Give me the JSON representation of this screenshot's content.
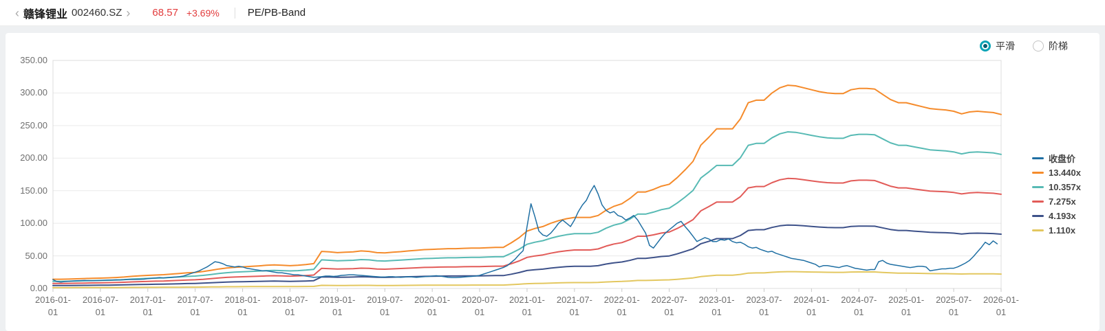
{
  "header": {
    "back_icon": "‹",
    "forward_icon": "›",
    "stock_name": "赣锋锂业",
    "stock_code": "002460.SZ",
    "price": "68.57",
    "change_pct": "+3.69%",
    "view_title": "PE/PB-Band"
  },
  "controls": {
    "options": [
      {
        "label": "平滑",
        "selected": true
      },
      {
        "label": "阶梯",
        "selected": false
      }
    ],
    "accent_color": "#0aa4b6"
  },
  "legend": {
    "items": [
      {
        "label": "收盘价",
        "color": "#1f6fa3"
      },
      {
        "label": "13.440x",
        "color": "#f58b2b"
      },
      {
        "label": "10.357x",
        "color": "#57bab4"
      },
      {
        "label": "7.275x",
        "color": "#e25b58"
      },
      {
        "label": "4.193x",
        "color": "#3d5189"
      },
      {
        "label": "1.110x",
        "color": "#e3c75f"
      }
    ]
  },
  "chart_data": {
    "type": "line",
    "title": "PE/PB-Band",
    "xlabel": "",
    "ylabel": "",
    "grid": true,
    "legend_position": "right",
    "ylim": [
      0,
      350
    ],
    "y_ticks": [
      "350.00",
      "300.00",
      "250.00",
      "200.00",
      "150.00",
      "100.00",
      "50.00",
      "0.00"
    ],
    "x_range_years": [
      2016,
      2026
    ],
    "x_ticks": [
      "2016-01-01",
      "2016-07-01",
      "2017-01-01",
      "2017-07-01",
      "2018-01-01",
      "2018-07-01",
      "2019-01-01",
      "2019-07-01",
      "2020-01-01",
      "2020-07-01",
      "2021-01-01",
      "2021-07-01",
      "2022-01-01",
      "2022-07-01",
      "2023-01-01",
      "2023-07-01",
      "2024-01-01",
      "2024-07-01",
      "2025-01-01",
      "2025-07-01",
      "2026-01-01"
    ],
    "close": {
      "name": "收盘价",
      "color": "#1f6fa3",
      "start_year": 2016,
      "points_per_year": 24,
      "values": [
        13.5,
        10.5,
        9.8,
        10.5,
        11,
        11.5,
        11.8,
        12,
        12.2,
        12,
        11.8,
        12,
        12.2,
        12.5,
        12.8,
        13,
        13.2,
        13,
        13.5,
        13.8,
        14,
        13.8,
        14,
        14.2,
        15,
        15.5,
        16,
        16.5,
        16,
        16.5,
        17,
        17.5,
        18,
        19,
        21,
        23,
        25,
        27,
        30,
        33,
        37,
        41,
        40,
        38,
        35,
        34,
        33,
        34,
        33,
        31,
        30,
        29,
        28,
        27,
        27,
        26,
        25,
        24,
        24,
        23,
        22,
        21,
        21,
        20,
        19,
        18,
        17,
        17.5,
        18,
        19,
        19,
        18.5,
        19,
        20,
        20.5,
        21,
        21,
        20.5,
        20,
        19.5,
        19,
        18.5,
        18,
        17.5,
        17.5,
        18,
        18,
        17.5,
        17,
        17.5,
        18,
        17.5,
        17,
        17.5,
        18,
        18.5,
        19,
        19.5,
        19,
        18,
        17,
        16.5,
        16.5,
        17,
        17.5,
        18,
        18.5,
        19,
        20,
        22,
        24,
        26,
        28,
        30,
        32,
        35,
        40,
        45,
        52,
        58,
        95,
        130,
        110,
        88,
        82,
        80,
        85,
        92,
        100,
        105,
        100,
        95,
        105,
        118,
        128,
        135,
        148,
        158,
        145,
        128,
        120,
        116,
        118,
        112,
        110,
        105,
        108,
        112,
        105,
        95,
        85,
        66,
        62,
        70,
        78,
        85,
        90,
        95,
        100,
        103,
        95,
        88,
        80,
        72,
        75,
        78,
        76,
        72,
        72,
        75,
        74,
        76,
        72,
        70,
        71,
        68,
        64,
        62,
        63,
        60,
        58,
        56,
        57,
        54,
        52,
        50,
        48,
        46,
        45,
        44,
        43,
        41,
        39,
        37,
        33,
        35,
        35,
        34,
        33,
        32,
        34,
        35,
        33,
        31,
        30,
        29,
        28,
        29,
        29,
        41,
        43,
        39,
        37,
        36,
        35,
        34,
        33,
        32,
        33,
        34,
        34,
        33,
        27,
        28,
        29,
        30,
        30,
        31,
        31,
        33,
        36,
        39,
        43,
        49,
        56,
        63,
        71,
        67,
        73,
        68.57
      ]
    },
    "bands": {
      "description": "PB band lines; each series value = base_value * multiple",
      "start_year": 2016,
      "points_per_year": 12,
      "base_values": [
        1.05,
        1.05,
        1.07,
        1.1,
        1.13,
        1.16,
        1.18,
        1.21,
        1.25,
        1.3,
        1.38,
        1.44,
        1.49,
        1.53,
        1.57,
        1.64,
        1.71,
        1.78,
        1.83,
        1.93,
        2.07,
        2.22,
        2.33,
        2.41,
        2.46,
        2.52,
        2.57,
        2.64,
        2.68,
        2.64,
        2.6,
        2.64,
        2.72,
        2.83,
        4.23,
        4.17,
        4.09,
        4.13,
        4.17,
        4.28,
        4.23,
        4.09,
        4.06,
        4.13,
        4.2,
        4.28,
        4.35,
        4.43,
        4.46,
        4.5,
        4.54,
        4.54,
        4.58,
        4.61,
        4.61,
        4.65,
        4.69,
        4.69,
        5.21,
        5.8,
        6.55,
        6.85,
        7.07,
        7.44,
        7.74,
        7.96,
        8.11,
        8.11,
        8.11,
        8.33,
        8.93,
        9.38,
        9.67,
        10.27,
        11.01,
        11.01,
        11.31,
        11.68,
        11.9,
        12.65,
        13.54,
        14.51,
        16.37,
        17.26,
        18.23,
        18.23,
        18.23,
        19.35,
        21.21,
        21.5,
        21.5,
        22.32,
        22.92,
        23.21,
        23.14,
        22.92,
        22.69,
        22.47,
        22.32,
        22.25,
        22.25,
        22.69,
        22.84,
        22.84,
        22.77,
        22.17,
        21.58,
        21.21,
        21.21,
        20.98,
        20.76,
        20.54,
        20.46,
        20.39,
        20.24,
        19.94,
        20.16,
        20.24,
        20.16,
        20.09,
        19.87
      ],
      "series": [
        {
          "name": "13.440x",
          "multiple": 13.44,
          "color": "#f58b2b"
        },
        {
          "name": "10.357x",
          "multiple": 10.357,
          "color": "#57bab4"
        },
        {
          "name": "7.275x",
          "multiple": 7.275,
          "color": "#e25b58"
        },
        {
          "name": "4.193x",
          "multiple": 4.193,
          "color": "#3d5189"
        },
        {
          "name": "1.110x",
          "multiple": 1.11,
          "color": "#e3c75f"
        }
      ]
    },
    "colors": {
      "grid": "#eaeaea",
      "axis_border": "#dcdcdc",
      "tick_text": "#6e6e6e"
    }
  }
}
